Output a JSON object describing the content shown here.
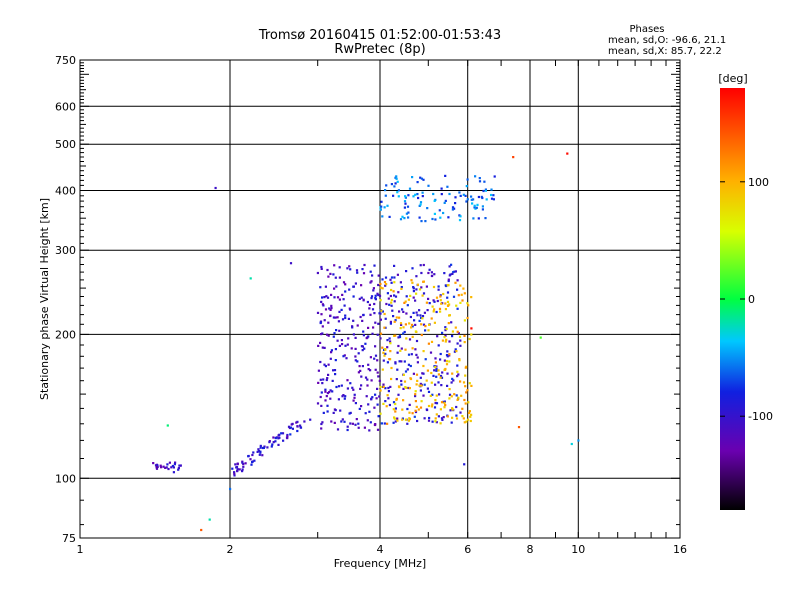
{
  "chart_data": {
    "type": "scatter",
    "title": "Tromsø 20160415 01:52:00-01:53:43",
    "subtitle": "RwPretec (8p)",
    "xlabel": "Frequency [MHz]",
    "ylabel": "Stationary phase Virtual Height [km]",
    "xscale": "log",
    "yscale": "log",
    "xlim": [
      1,
      16
    ],
    "ylim": [
      75,
      750
    ],
    "grid": true,
    "x_ticks": [
      1,
      2,
      4,
      6,
      8,
      10,
      16
    ],
    "y_ticks": [
      75,
      100,
      200,
      300,
      400,
      500,
      600,
      750
    ],
    "annotation": {
      "title": "Phases",
      "line_o": "mean, sd,O: -96.6, 21.1",
      "line_x": "mean, sd,X: 85.7, 22.2"
    },
    "colorbar": {
      "label": "[deg]",
      "range": [
        -180,
        180
      ],
      "ticks": [
        100,
        0,
        -100
      ]
    },
    "point_groups": [
      {
        "name": "o-mode low-freq trace",
        "phase_deg": -110,
        "x_range": [
          1.4,
          1.6
        ],
        "y_range": [
          103,
          108
        ],
        "count": 28
      },
      {
        "name": "o-mode rising trace",
        "phase_deg": -100,
        "x_range": [
          2.0,
          2.9
        ],
        "y_range": [
          102,
          135
        ],
        "count": 80
      },
      {
        "name": "o-mode F1 cluster",
        "phase_deg": -105,
        "x_range": [
          3.0,
          4.0
        ],
        "y_range": [
          125,
          280
        ],
        "count": 280
      },
      {
        "name": "o-mode F2 cluster",
        "phase_deg": -95,
        "x_range": [
          4.0,
          5.8
        ],
        "y_range": [
          130,
          280
        ],
        "count": 260
      },
      {
        "name": "x-mode cluster",
        "phase_deg": 95,
        "x_range": [
          4.0,
          6.1
        ],
        "y_range": [
          130,
          260
        ],
        "count": 240
      },
      {
        "name": "upper layer mixed",
        "phase_deg": -60,
        "x_range": [
          4.0,
          6.8
        ],
        "y_range": [
          345,
          430
        ],
        "count": 120
      }
    ],
    "outliers": [
      {
        "x": 1.87,
        "y": 405,
        "phase_deg": -105
      },
      {
        "x": 1.75,
        "y": 78,
        "phase_deg": 140
      },
      {
        "x": 1.82,
        "y": 82,
        "phase_deg": -20
      },
      {
        "x": 2.0,
        "y": 95,
        "phase_deg": -60
      },
      {
        "x": 2.2,
        "y": 262,
        "phase_deg": -20
      },
      {
        "x": 2.65,
        "y": 282,
        "phase_deg": -105
      },
      {
        "x": 1.5,
        "y": 129,
        "phase_deg": -10
      },
      {
        "x": 7.4,
        "y": 470,
        "phase_deg": 150
      },
      {
        "x": 9.5,
        "y": 478,
        "phase_deg": 175
      },
      {
        "x": 9.7,
        "y": 118,
        "phase_deg": -30
      },
      {
        "x": 10.0,
        "y": 120,
        "phase_deg": -50
      },
      {
        "x": 7.6,
        "y": 128,
        "phase_deg": 140
      },
      {
        "x": 8.4,
        "y": 197,
        "phase_deg": 20
      },
      {
        "x": 6.1,
        "y": 206,
        "phase_deg": 175
      },
      {
        "x": 5.9,
        "y": 107,
        "phase_deg": -90
      }
    ]
  }
}
